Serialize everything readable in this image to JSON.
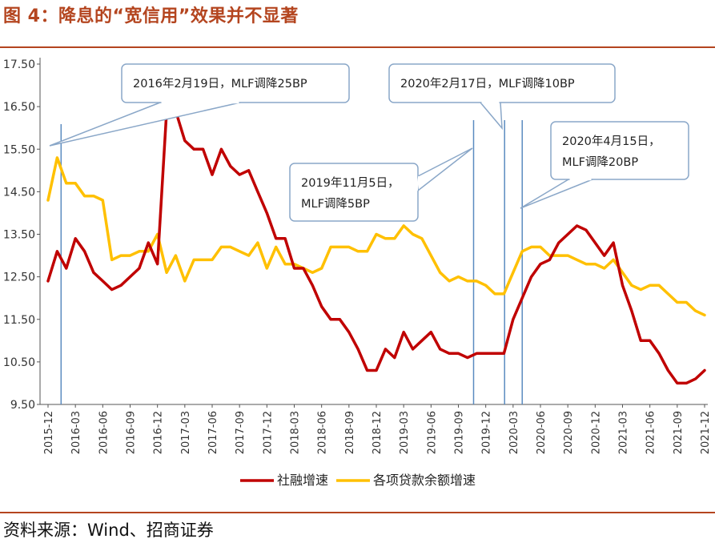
{
  "figure": {
    "title": "图 4：降息的“宽信用”效果并不显著",
    "source": "资料来源：Wind、招商证券"
  },
  "colors": {
    "accent": "#b4451f",
    "series_social": "#c00000",
    "series_loan": "#ffc000",
    "marker_line": "#5b8bc0",
    "callout_border": "#8aa7c8"
  },
  "chart_data": {
    "type": "line",
    "title": "",
    "xlabel": "",
    "ylabel": "",
    "ylim": [
      9.5,
      17.5
    ],
    "yticks": [
      "9.50",
      "10.50",
      "11.50",
      "12.50",
      "13.50",
      "14.50",
      "15.50",
      "16.50",
      "17.50"
    ],
    "xticks": [
      "2015-12",
      "2016-03",
      "2016-06",
      "2016-09",
      "2016-12",
      "2017-03",
      "2017-06",
      "2017-09",
      "2017-12",
      "2018-03",
      "2018-06",
      "2018-09",
      "2018-12",
      "2019-03",
      "2019-06",
      "2019-09",
      "2019-12",
      "2020-03",
      "2020-06",
      "2020-09",
      "2020-12",
      "2021-03",
      "2021-06",
      "2021-09",
      "2021-12"
    ],
    "x": [
      "2015-12",
      "2016-01",
      "2016-02",
      "2016-03",
      "2016-04",
      "2016-05",
      "2016-06",
      "2016-07",
      "2016-08",
      "2016-09",
      "2016-10",
      "2016-11",
      "2016-12",
      "2017-01",
      "2017-02",
      "2017-03",
      "2017-04",
      "2017-05",
      "2017-06",
      "2017-07",
      "2017-08",
      "2017-09",
      "2017-10",
      "2017-11",
      "2017-12",
      "2018-01",
      "2018-02",
      "2018-03",
      "2018-04",
      "2018-05",
      "2018-06",
      "2018-07",
      "2018-08",
      "2018-09",
      "2018-10",
      "2018-11",
      "2018-12",
      "2019-01",
      "2019-02",
      "2019-03",
      "2019-04",
      "2019-05",
      "2019-06",
      "2019-07",
      "2019-08",
      "2019-09",
      "2019-10",
      "2019-11",
      "2019-12",
      "2020-01",
      "2020-02",
      "2020-03",
      "2020-04",
      "2020-05",
      "2020-06",
      "2020-07",
      "2020-08",
      "2020-09",
      "2020-10",
      "2020-11",
      "2020-12",
      "2021-01",
      "2021-02",
      "2021-03",
      "2021-04",
      "2021-05",
      "2021-06",
      "2021-07",
      "2021-08",
      "2021-09",
      "2021-10",
      "2021-11",
      "2021-12"
    ],
    "series": [
      {
        "name": "社融增速",
        "values": [
          12.4,
          13.1,
          12.7,
          13.4,
          13.1,
          12.6,
          12.4,
          12.2,
          12.3,
          12.5,
          12.7,
          13.3,
          12.8,
          16.4,
          16.4,
          15.7,
          15.5,
          15.5,
          14.9,
          15.5,
          15.1,
          14.9,
          15.0,
          14.5,
          14.0,
          13.4,
          13.4,
          12.7,
          12.7,
          12.3,
          11.8,
          11.5,
          11.5,
          11.2,
          10.8,
          10.3,
          10.3,
          10.8,
          10.6,
          11.2,
          10.8,
          11.0,
          11.2,
          10.8,
          10.7,
          10.7,
          10.6,
          10.7,
          10.7,
          10.7,
          10.7,
          11.5,
          12.0,
          12.5,
          12.8,
          12.9,
          13.3,
          13.5,
          13.7,
          13.6,
          13.3,
          13.0,
          13.3,
          12.3,
          11.7,
          11.0,
          11.0,
          10.7,
          10.3,
          10.0,
          10.0,
          10.1,
          10.3
        ]
      },
      {
        "name": "各项贷款余额增速",
        "values": [
          14.3,
          15.3,
          14.7,
          14.7,
          14.4,
          14.4,
          14.3,
          12.9,
          13.0,
          13.0,
          13.1,
          13.1,
          13.5,
          12.6,
          13.0,
          12.4,
          12.9,
          12.9,
          12.9,
          13.2,
          13.2,
          13.1,
          13.0,
          13.3,
          12.7,
          13.2,
          12.8,
          12.8,
          12.7,
          12.6,
          12.7,
          13.2,
          13.2,
          13.2,
          13.1,
          13.1,
          13.5,
          13.4,
          13.4,
          13.7,
          13.5,
          13.4,
          13.0,
          12.6,
          12.4,
          12.5,
          12.4,
          12.4,
          12.3,
          12.1,
          12.1,
          12.6,
          13.1,
          13.2,
          13.2,
          13.0,
          13.0,
          13.0,
          12.9,
          12.8,
          12.8,
          12.7,
          12.9,
          12.6,
          12.3,
          12.2,
          12.3,
          12.3,
          12.1,
          11.9,
          11.9,
          11.7,
          11.6
        ]
      }
    ],
    "legend": "bottom",
    "grid": false,
    "annotations": [
      {
        "lines": [
          "2016年2月19日，MLF调降25BP"
        ],
        "date": "2016-02-19"
      },
      {
        "lines": [
          "2020年2月17日，MLF调降10BP"
        ],
        "date": "2020-02-17"
      },
      {
        "lines": [
          "2019年11月5日，",
          "MLF调降5BP"
        ],
        "date": "2019-11-05"
      },
      {
        "lines": [
          "2020年4月15日，",
          "MLF调降20BP"
        ],
        "date": "2020-04-15"
      }
    ]
  }
}
